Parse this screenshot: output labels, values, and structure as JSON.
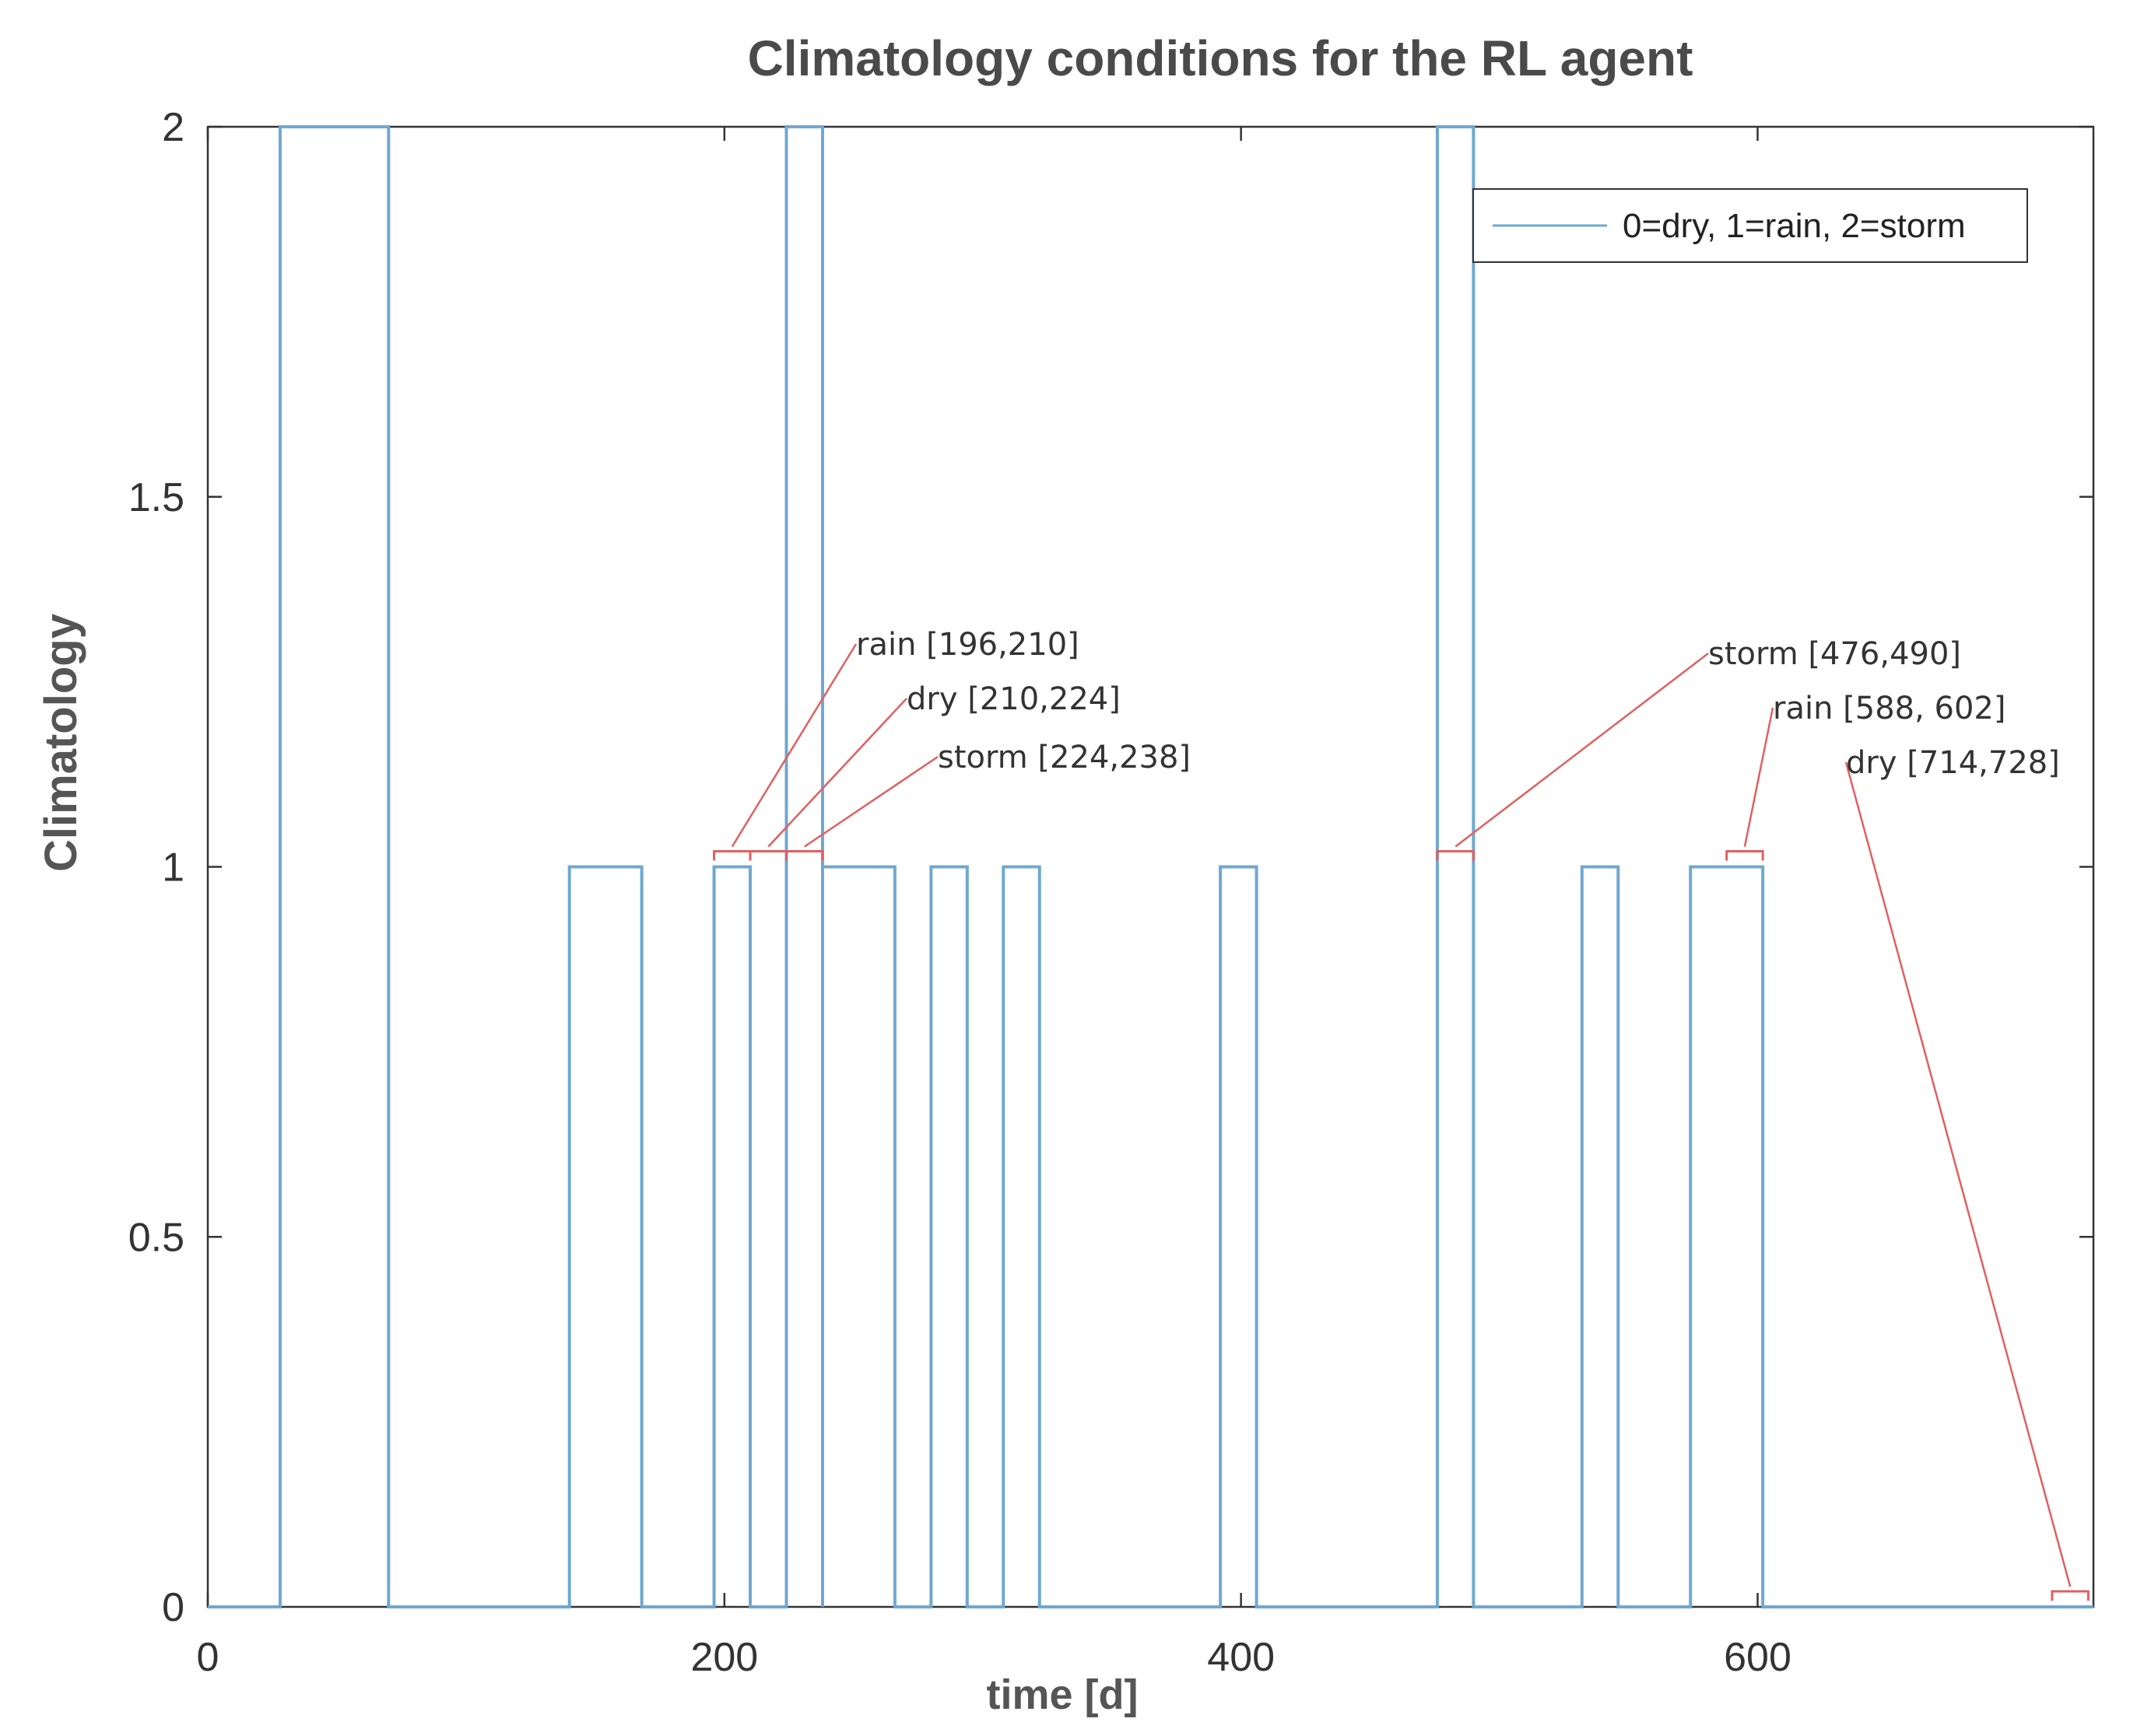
{
  "chart_data": {
    "type": "line",
    "title": "Climatology conditions for the RL agent",
    "xlabel": "time [d]",
    "ylabel": "Climatology",
    "xlim": [
      0,
      730
    ],
    "ylim": [
      0,
      2
    ],
    "xticks": [
      0,
      200,
      400,
      600
    ],
    "yticks": [
      0,
      0.5,
      1,
      1.5,
      2
    ],
    "xtick_labels": [
      "0",
      "200",
      "400",
      "600"
    ],
    "ytick_labels": [
      "0",
      "0.5",
      "1",
      "1.5",
      "2"
    ],
    "grid": false,
    "legend": {
      "position": "top-right",
      "entries": [
        "0=dry, 1=rain, 2=storm"
      ]
    },
    "series": [
      {
        "name": "0=dry, 1=rain, 2=storm",
        "color": "#6fa8d0",
        "segments": [
          {
            "start": 28,
            "end": 70,
            "value": 2
          },
          {
            "start": 140,
            "end": 168,
            "value": 1
          },
          {
            "start": 196,
            "end": 210,
            "value": 1
          },
          {
            "start": 224,
            "end": 238,
            "value": 2
          },
          {
            "start": 238,
            "end": 266,
            "value": 1
          },
          {
            "start": 280,
            "end": 294,
            "value": 1
          },
          {
            "start": 308,
            "end": 322,
            "value": 1
          },
          {
            "start": 392,
            "end": 406,
            "value": 1
          },
          {
            "start": 476,
            "end": 490,
            "value": 2
          },
          {
            "start": 532,
            "end": 546,
            "value": 1
          },
          {
            "start": 574,
            "end": 602,
            "value": 1
          }
        ]
      }
    ],
    "annotations": [
      {
        "text": "rain [196,210]",
        "range": [
          196,
          210
        ],
        "level": 1
      },
      {
        "text": "dry [210,224]",
        "range": [
          210,
          224
        ],
        "level": 1
      },
      {
        "text": "storm [224,238]",
        "range": [
          224,
          238
        ],
        "level": 1
      },
      {
        "text": "storm [476,490]",
        "range": [
          476,
          490
        ],
        "level": 1
      },
      {
        "text": "rain [588, 602]",
        "range": [
          588,
          602
        ],
        "level": 1
      },
      {
        "text": "dry [714,728]",
        "range": [
          714,
          728
        ],
        "level": 0
      }
    ],
    "annotation_color": "#e06060"
  }
}
